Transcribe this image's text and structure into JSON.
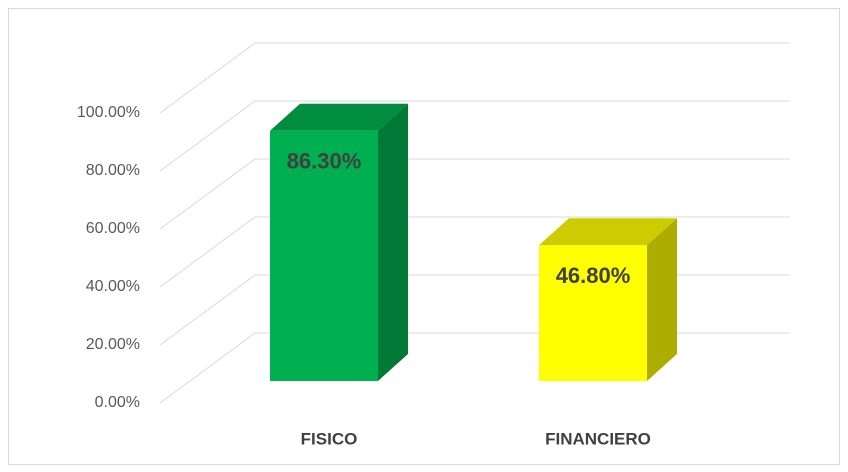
{
  "chart_data": {
    "type": "bar3d",
    "categories": [
      "FISICO",
      "FINANCIERO"
    ],
    "values": [
      86.3,
      46.8
    ],
    "value_labels": [
      "86.30%",
      "46.80%"
    ],
    "colors": [
      "#00b050",
      "#ffff00"
    ],
    "ylim": [
      0,
      100
    ],
    "yticks": [
      {
        "value": 0,
        "label": "0.00%"
      },
      {
        "value": 20,
        "label": "20.00%"
      },
      {
        "value": 40,
        "label": "40.00%"
      },
      {
        "value": 60,
        "label": "60.00%"
      },
      {
        "value": 80,
        "label": "80.00%"
      },
      {
        "value": 100,
        "label": "100.00%"
      }
    ],
    "grid": true
  }
}
